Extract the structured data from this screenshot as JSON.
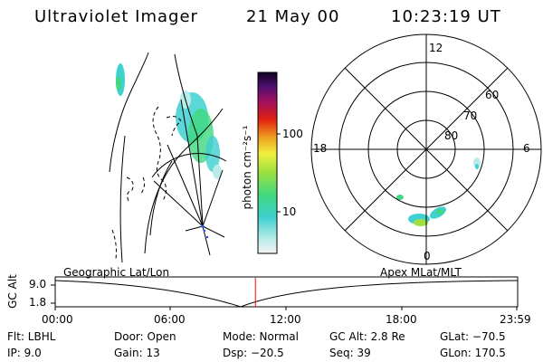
{
  "header": {
    "instrument": "Ultraviolet Imager",
    "date": "21 May 00",
    "time": "10:23:19 UT"
  },
  "colorbar": {
    "unit_label": "photon cm⁻²s⁻¹",
    "ticks": [
      "100",
      "10"
    ]
  },
  "polar_plot": {
    "mlt_labels": [
      "12",
      "18",
      "6",
      "0"
    ],
    "lat_labels": [
      "60",
      "70",
      "80"
    ]
  },
  "geo_map": {
    "label": "Geographic Lat/Lon"
  },
  "orbit_panel": {
    "left_label": "Geographic Lat/Lon",
    "right_label": "Apex MLat/MLT",
    "y_axis_label": "GC Alt",
    "y_ticks": [
      "9.0",
      "1.8"
    ],
    "x_ticks": [
      "00:00",
      "06:00",
      "12:00",
      "18:00",
      "23:59"
    ],
    "current_time_fraction": 0.4329
  },
  "footer": {
    "filter": "Flt: LBHL",
    "ip": "IP:  9.0",
    "door": "Door: Open",
    "gain": "Gain: 13",
    "mode": "Mode: Normal",
    "dsp": "Dsp:  −20.5",
    "gc_alt": "GC Alt: 2.8 Re",
    "seq": "Seq: 39",
    "glat": "GLat: −70.5",
    "glon": "GLon: 170.5"
  }
}
